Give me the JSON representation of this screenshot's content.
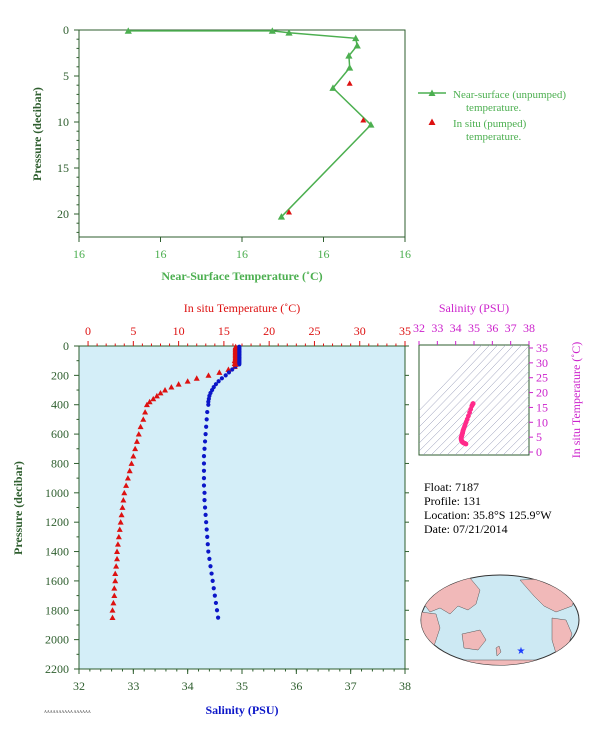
{
  "colors": {
    "green": "#4caf50",
    "axis_green": "#2e5e2e",
    "red": "#dd1111",
    "blue": "#0b16c8",
    "magenta": "#cc22cc",
    "pink": "#ff2a8a",
    "panel_bg": "#d4eef8",
    "land": "#f1b9b9",
    "ocean": "#cde9f3"
  },
  "info": {
    "float": "Float:  7187",
    "profile": "Profile:  131",
    "location": "Location:  35.8°S  125.9°W",
    "date": "Date:  07/21/2014"
  },
  "footnote": "AAAAAAAAAA AAAAAA",
  "chart_data": [
    {
      "type": "line",
      "id": "near-surface",
      "xlabel": "Near-Surface Temperature (˚C)",
      "ylabel": "Pressure (decibar)",
      "x_tick_labels": [
        "16",
        "16",
        "16",
        "16",
        "16"
      ],
      "y_ticks": [
        0,
        5,
        10,
        15,
        20
      ],
      "ylim": [
        0,
        22.5
      ],
      "xlim": [
        15.62,
        16.05
      ],
      "series": [
        {
          "name": "Near-surface (unpumped) temperature.",
          "marker": "triangle",
          "x": [
            15.685,
            15.875,
            15.897,
            15.985,
            15.987,
            15.976,
            15.977,
            15.955,
            16.005,
            15.887
          ],
          "y": [
            0.1,
            0.1,
            0.3,
            0.9,
            1.7,
            2.8,
            4.1,
            6.3,
            10.3,
            20.3
          ]
        },
        {
          "name": "In situ (pumped) temperature.",
          "marker": "triangle",
          "x": [
            15.977,
            15.995,
            15.897
          ],
          "y": [
            5.8,
            9.8,
            19.8
          ]
        }
      ]
    },
    {
      "type": "scatter",
      "id": "profile",
      "ylabel": "Pressure (decibar)",
      "y_ticks": [
        0,
        200,
        400,
        600,
        800,
        1000,
        1200,
        1400,
        1600,
        1800,
        2000,
        2200
      ],
      "ylim": [
        0,
        2200
      ],
      "top_axis": {
        "label": "In situ Temperature (˚C)",
        "ticks": [
          0,
          5,
          10,
          15,
          20,
          25,
          30,
          35
        ],
        "lim": [
          -1,
          35
        ]
      },
      "bottom_axis": {
        "label": "Salinity (PSU)",
        "ticks": [
          32,
          33,
          34,
          35,
          36,
          37,
          38
        ],
        "lim": [
          32,
          38
        ]
      },
      "series": [
        {
          "name": "In situ Temperature",
          "axis": "top",
          "p": [
            20,
            40,
            60,
            80,
            100,
            120,
            140,
            160,
            180,
            200,
            220,
            240,
            260,
            280,
            300,
            320,
            340,
            360,
            380,
            400,
            450,
            500,
            550,
            600,
            650,
            700,
            750,
            800,
            850,
            900,
            950,
            1000,
            1050,
            1100,
            1150,
            1200,
            1250,
            1300,
            1350,
            1400,
            1450,
            1500,
            1550,
            1600,
            1650,
            1700,
            1750,
            1800,
            1850
          ],
          "v": [
            16.3,
            16.3,
            16.3,
            16.3,
            16.2,
            16.2,
            16.2,
            15.5,
            14.5,
            13.3,
            12.0,
            11.0,
            10.0,
            9.2,
            8.5,
            8.0,
            7.6,
            7.2,
            6.8,
            6.5,
            6.3,
            6.1,
            5.8,
            5.6,
            5.4,
            5.2,
            5.0,
            4.8,
            4.6,
            4.4,
            4.2,
            4.0,
            3.9,
            3.8,
            3.7,
            3.6,
            3.5,
            3.4,
            3.3,
            3.2,
            3.2,
            3.1,
            3.0,
            3.0,
            2.9,
            2.9,
            2.8,
            2.7,
            2.7
          ]
        },
        {
          "name": "Salinity",
          "axis": "bottom",
          "p": [
            20,
            40,
            60,
            80,
            100,
            120,
            140,
            160,
            180,
            200,
            220,
            240,
            260,
            280,
            300,
            320,
            340,
            360,
            380,
            400,
            450,
            500,
            550,
            600,
            650,
            700,
            750,
            800,
            850,
            900,
            950,
            1000,
            1050,
            1100,
            1150,
            1200,
            1250,
            1300,
            1350,
            1400,
            1450,
            1500,
            1550,
            1600,
            1650,
            1700,
            1750,
            1800,
            1850
          ],
          "v": [
            34.95,
            34.95,
            34.95,
            34.95,
            34.94,
            34.94,
            34.88,
            34.82,
            34.76,
            34.7,
            34.63,
            34.57,
            34.52,
            34.48,
            34.45,
            34.42,
            34.4,
            34.39,
            34.38,
            34.38,
            34.36,
            34.35,
            34.34,
            34.33,
            34.32,
            34.31,
            34.3,
            34.3,
            34.3,
            34.3,
            34.3,
            34.31,
            34.31,
            34.32,
            34.33,
            34.34,
            34.35,
            34.36,
            34.37,
            34.38,
            34.4,
            34.42,
            34.44,
            34.46,
            34.48,
            34.5,
            34.52,
            34.54,
            34.56
          ]
        }
      ]
    },
    {
      "type": "scatter",
      "id": "ts-diagram",
      "xlabel": "Salinity (PSU)",
      "ylabel": "In situ Temperature (˚C)",
      "x_ticks": [
        32,
        33,
        34,
        35,
        36,
        37,
        38
      ],
      "y_ticks": [
        0,
        5,
        10,
        15,
        20,
        25,
        30,
        35
      ],
      "xlim": [
        32,
        38
      ],
      "ylim": [
        -1,
        36
      ],
      "series": [
        {
          "name": "T-S profile",
          "x": [
            34.95,
            34.94,
            34.88,
            34.76,
            34.63,
            34.52,
            34.45,
            34.4,
            34.38,
            34.36,
            34.34,
            34.32,
            34.3,
            34.3,
            34.31,
            34.33,
            34.36,
            34.4,
            34.45,
            34.5,
            34.56
          ],
          "y": [
            16.3,
            16.2,
            15.5,
            13.3,
            11.0,
            9.2,
            8.0,
            7.2,
            6.5,
            6.1,
            5.6,
            5.2,
            4.8,
            4.4,
            4.0,
            3.7,
            3.4,
            3.2,
            3.0,
            2.9,
            2.7
          ]
        }
      ]
    }
  ]
}
